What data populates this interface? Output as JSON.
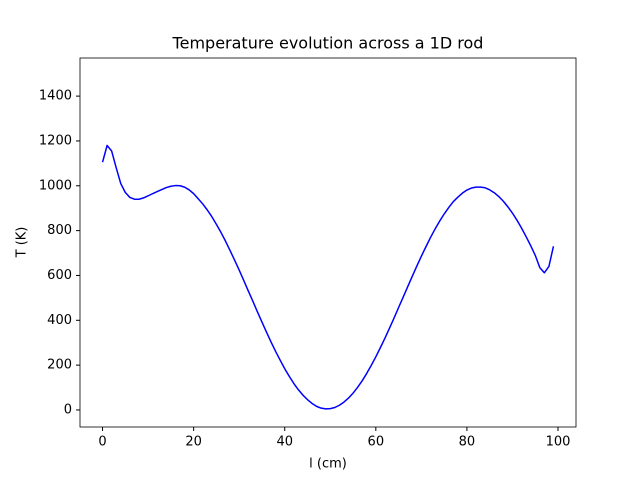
{
  "chart_data": {
    "type": "line",
    "title": "Temperature evolution across a 1D rod",
    "x_label": "l (cm)",
    "y_label": "T (K)",
    "x": [
      0,
      1,
      2,
      3,
      4,
      5,
      6,
      7,
      8,
      9,
      10,
      11,
      12,
      13,
      14,
      15,
      16,
      17,
      18,
      19,
      20,
      21,
      22,
      23,
      24,
      25,
      26,
      27,
      28,
      29,
      30,
      31,
      32,
      33,
      34,
      35,
      36,
      37,
      38,
      39,
      40,
      41,
      42,
      43,
      44,
      45,
      46,
      47,
      48,
      49,
      50,
      51,
      52,
      53,
      54,
      55,
      56,
      57,
      58,
      59,
      60,
      61,
      62,
      63,
      64,
      65,
      66,
      67,
      68,
      69,
      70,
      71,
      72,
      73,
      74,
      75,
      76,
      77,
      78,
      79,
      80,
      81,
      82,
      83,
      84,
      85,
      86,
      87,
      88,
      89,
      90,
      91,
      92,
      93,
      94,
      95,
      96,
      97,
      98,
      99
    ],
    "series": [
      {
        "color": "#0000ff",
        "values": [
          1105,
          1180,
          1155,
          1080,
          1010,
          970,
          948,
          940,
          940,
          946,
          955,
          965,
          974,
          983,
          992,
          998,
          1001,
          1000,
          994,
          982,
          965,
          942,
          919,
          892,
          862,
          828,
          792,
          753,
          711,
          668,
          624,
          578,
          531,
          485,
          438,
          392,
          347,
          303,
          261,
          222,
          184,
          150,
          118,
          90,
          66,
          46,
          29,
          16,
          8,
          5,
          6,
          11,
          21,
          35,
          53,
          75,
          101,
          130,
          163,
          199,
          237,
          278,
          320,
          365,
          410,
          457,
          503,
          550,
          596,
          642,
          686,
          728,
          769,
          807,
          842,
          874,
          903,
          929,
          949,
          967,
          981,
          990,
          994,
          994,
          991,
          982,
          969,
          952,
          931,
          906,
          878,
          846,
          811,
          773,
          733,
          690,
          635,
          612,
          640,
          730
        ]
      }
    ],
    "xlim": [
      -4.95,
      103.95
    ],
    "ylim": [
      -76,
      1570
    ],
    "xticks": [
      0,
      20,
      40,
      60,
      80,
      100
    ],
    "yticks": [
      0,
      200,
      400,
      600,
      800,
      1000,
      1200,
      1400
    ]
  }
}
